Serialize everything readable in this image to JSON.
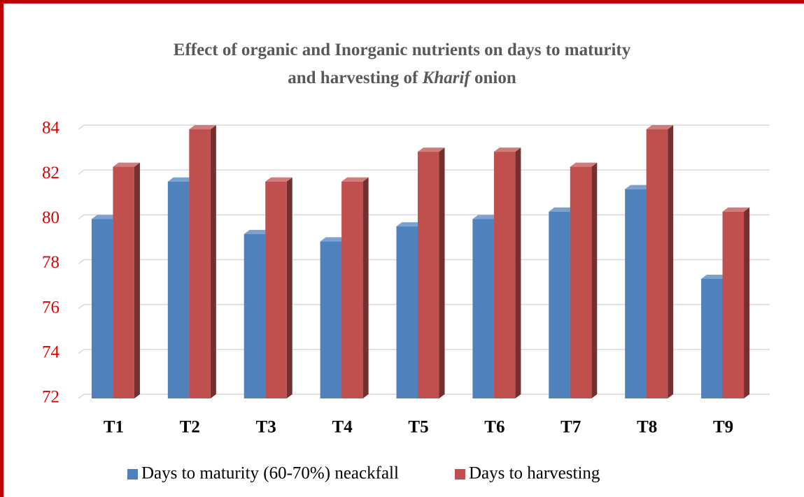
{
  "chart_data": {
    "type": "bar3d",
    "title": {
      "line1": "Effect of organic and Inorganic nutrients on days to maturity",
      "line2": [
        "and harvesting of",
        "Kharif",
        "onion"
      ]
    },
    "categories": [
      "T1",
      "T2",
      "T3",
      "T4",
      "T5",
      "T6",
      "T7",
      "T8",
      "T9"
    ],
    "series": [
      {
        "name": "Days to maturity (60-70%) neackfall",
        "color": "#4f81bd",
        "values": [
          80,
          81.67,
          79.33,
          79,
          79.67,
          80,
          80.33,
          81.33,
          77.33
        ]
      },
      {
        "name": "Days to harvesting",
        "color": "#c0504d",
        "values": [
          82.33,
          84,
          81.67,
          81.67,
          83,
          83,
          82.33,
          84,
          80.33
        ]
      }
    ],
    "ylim": [
      72,
      84
    ],
    "yticks": [
      72,
      74,
      76,
      78,
      80,
      82,
      84
    ],
    "grid": true,
    "legend": "bottom"
  }
}
